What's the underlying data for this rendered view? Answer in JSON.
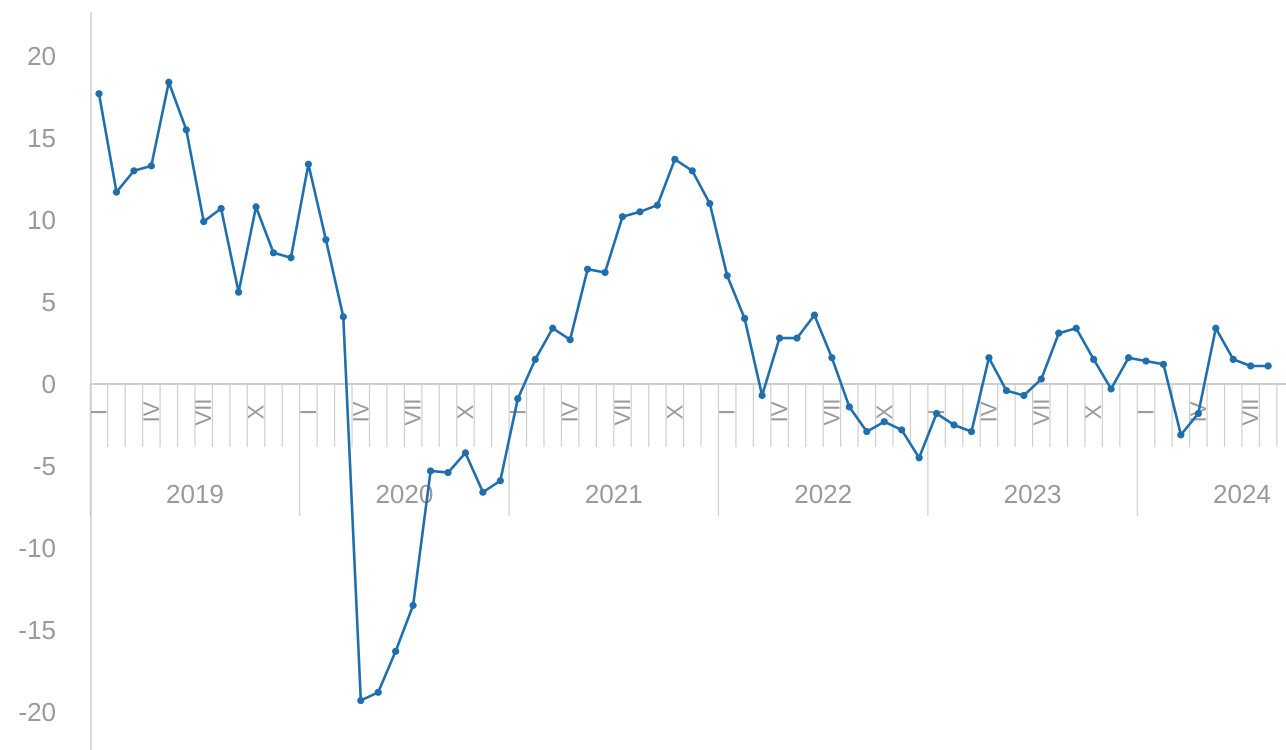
{
  "chart_data": {
    "type": "line",
    "title": "",
    "xlabel": "",
    "ylabel": "",
    "ylim": [
      -20,
      20
    ],
    "yticks": [
      20,
      15,
      10,
      5,
      0,
      -5,
      -10,
      -15,
      -20
    ],
    "grid": false,
    "legend": "none",
    "month_tick_labels": [
      "I",
      "IV",
      "VII",
      "X"
    ],
    "years": [
      "2019",
      "2020",
      "2021",
      "2022",
      "2023",
      "2024"
    ],
    "x": [
      "2019-01",
      "2019-02",
      "2019-03",
      "2019-04",
      "2019-05",
      "2019-06",
      "2019-07",
      "2019-08",
      "2019-09",
      "2019-10",
      "2019-11",
      "2019-12",
      "2020-01",
      "2020-02",
      "2020-03",
      "2020-04",
      "2020-05",
      "2020-06",
      "2020-07",
      "2020-08",
      "2020-09",
      "2020-10",
      "2020-11",
      "2020-12",
      "2021-01",
      "2021-02",
      "2021-03",
      "2021-04",
      "2021-05",
      "2021-06",
      "2021-07",
      "2021-08",
      "2021-09",
      "2021-10",
      "2021-11",
      "2021-12",
      "2022-01",
      "2022-02",
      "2022-03",
      "2022-04",
      "2022-05",
      "2022-06",
      "2022-07",
      "2022-08",
      "2022-09",
      "2022-10",
      "2022-11",
      "2022-12",
      "2023-01",
      "2023-02",
      "2023-03",
      "2023-04",
      "2023-05",
      "2023-06",
      "2023-07",
      "2023-08",
      "2023-09",
      "2023-10",
      "2023-11",
      "2023-12",
      "2024-01",
      "2024-02",
      "2024-03",
      "2024-04",
      "2024-05",
      "2024-06",
      "2024-07",
      "2024-08"
    ],
    "series": [
      {
        "color": "#1f6fad",
        "values": [
          17.7,
          11.7,
          13.0,
          13.3,
          18.4,
          15.5,
          9.9,
          10.7,
          5.6,
          10.8,
          8.0,
          7.7,
          13.4,
          8.8,
          4.1,
          -19.3,
          -18.8,
          -16.3,
          -13.5,
          -5.3,
          -5.4,
          -4.2,
          -6.6,
          -5.9,
          -0.9,
          1.5,
          3.4,
          2.7,
          7.0,
          6.8,
          10.2,
          10.5,
          10.9,
          13.7,
          13.0,
          11.0,
          6.6,
          4.0,
          -0.7,
          2.8,
          2.8,
          4.2,
          1.6,
          -1.4,
          -2.9,
          -2.3,
          -2.8,
          -4.5,
          -1.8,
          -2.5,
          -2.9,
          1.6,
          -0.4,
          -0.7,
          0.3,
          3.1,
          3.4,
          1.5,
          -0.3,
          1.6,
          1.4,
          1.2,
          -3.1,
          -1.8,
          3.4,
          1.5,
          1.1,
          1.1
        ]
      }
    ]
  }
}
